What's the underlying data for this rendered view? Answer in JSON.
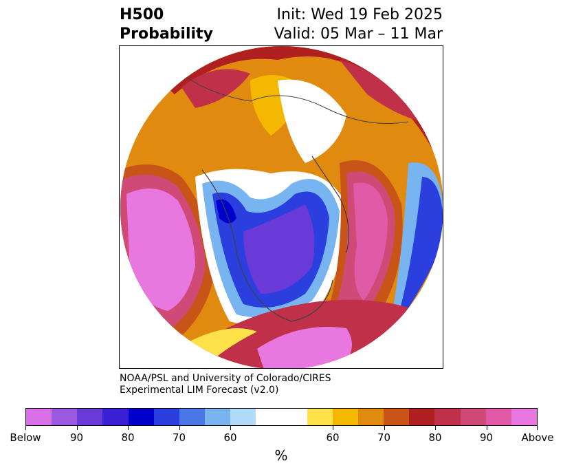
{
  "title": {
    "left_line1": "H500",
    "left_line2": "Probability",
    "right_line1": "Init: Wed 19 Feb 2025",
    "right_line2": "Valid: 05 Mar – 11 Mar"
  },
  "credit": {
    "line1": "NOAA/PSL and University of Colorado/CIRES",
    "line2": "Experimental LIM Forecast (v2.0)"
  },
  "colorbar": {
    "colors": [
      "#da70e8",
      "#9b59e0",
      "#6a3ad8",
      "#3b1fd4",
      "#0000cd",
      "#2a3fdd",
      "#4a78e6",
      "#78b4f0",
      "#b0dcfa",
      "#ffffff",
      "#ffe14a",
      "#f5b800",
      "#e08a10",
      "#c85418",
      "#b02020",
      "#c03048",
      "#d04a78",
      "#e05aa8",
      "#e878e0"
    ],
    "tick_labels": [
      "Below",
      "90",
      "80",
      "70",
      "60",
      "60",
      "70",
      "80",
      "90",
      "Above"
    ],
    "unit": "%"
  },
  "map": {
    "colors": {
      "strong_above": "#e878e0",
      "above_90": "#e05aa8",
      "above_85": "#d04a78",
      "above_80": "#c03048",
      "above_75": "#b02020",
      "above_70": "#c85418",
      "above_65": "#e08a10",
      "above_60": "#f5b800",
      "above_55": "#ffe14a",
      "neutral": "#ffffff",
      "below_55": "#b0dcfa",
      "below_60": "#78b4f0",
      "below_65": "#4a78e6",
      "below_70": "#2a3fdd",
      "below_75": "#0000cd",
      "below_80": "#3b1fd4",
      "below_85": "#6a3ad8",
      "below_90": "#9b59e0",
      "coast": "#404040"
    }
  }
}
